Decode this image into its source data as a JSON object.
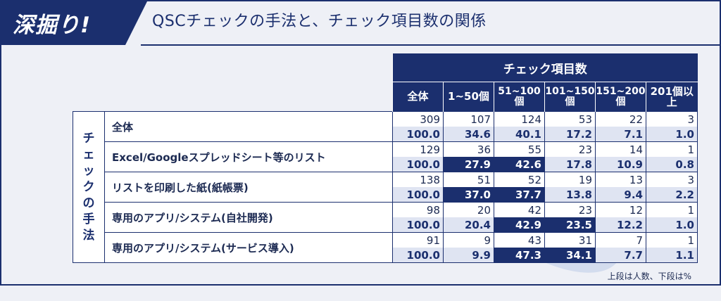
{
  "header": {
    "tag": "深掘り!",
    "title": "QSCチェックの手法と、チェック項目数の関係"
  },
  "table": {
    "group_header": "チェック項目数",
    "side_label": [
      "チ",
      "ェ",
      "ッ",
      "ク",
      "の",
      "手",
      "法"
    ],
    "columns": [
      {
        "line1": "全体",
        "line2": ""
      },
      {
        "line1": "1~50個",
        "line2": ""
      },
      {
        "line1": "51~100",
        "line2": "個"
      },
      {
        "line1": "101~150",
        "line2": "個"
      },
      {
        "line1": "151~200",
        "line2": "個"
      },
      {
        "line1": "201個以上",
        "line2": ""
      }
    ],
    "rows": [
      {
        "label": "全体",
        "counts": [
          "309",
          "107",
          "124",
          "53",
          "22",
          "3"
        ],
        "pcts": [
          "100.0",
          "34.6",
          "40.1",
          "17.2",
          "7.1",
          "1.0"
        ],
        "highlight": [
          false,
          false,
          false,
          false,
          false,
          false
        ]
      },
      {
        "label": "Excel/Googleスプレッドシート等のリスト",
        "counts": [
          "129",
          "36",
          "55",
          "23",
          "14",
          "1"
        ],
        "pcts": [
          "100.0",
          "27.9",
          "42.6",
          "17.8",
          "10.9",
          "0.8"
        ],
        "highlight": [
          false,
          true,
          true,
          false,
          false,
          false
        ]
      },
      {
        "label": "リストを印刷した紙(紙帳票)",
        "counts": [
          "138",
          "51",
          "52",
          "19",
          "13",
          "3"
        ],
        "pcts": [
          "100.0",
          "37.0",
          "37.7",
          "13.8",
          "9.4",
          "2.2"
        ],
        "highlight": [
          false,
          true,
          true,
          false,
          false,
          false
        ]
      },
      {
        "label": "専用のアプリ/システム(自社開発)",
        "counts": [
          "98",
          "20",
          "42",
          "23",
          "12",
          "1"
        ],
        "pcts": [
          "100.0",
          "20.4",
          "42.9",
          "23.5",
          "12.2",
          "1.0"
        ],
        "highlight": [
          false,
          false,
          true,
          true,
          false,
          false
        ]
      },
      {
        "label": "専用のアプリ/システム(サービス導入)",
        "counts": [
          "91",
          "9",
          "43",
          "31",
          "7",
          "1"
        ],
        "pcts": [
          "100.0",
          "9.9",
          "47.3",
          "34.1",
          "7.7",
          "1.1"
        ],
        "highlight": [
          false,
          false,
          true,
          true,
          false,
          false
        ]
      }
    ],
    "note": "上段は人数、下段は%"
  },
  "colors": {
    "navy": "#1b2f6e",
    "light_row": "#dfe4f2",
    "background": "#eef0f6"
  }
}
